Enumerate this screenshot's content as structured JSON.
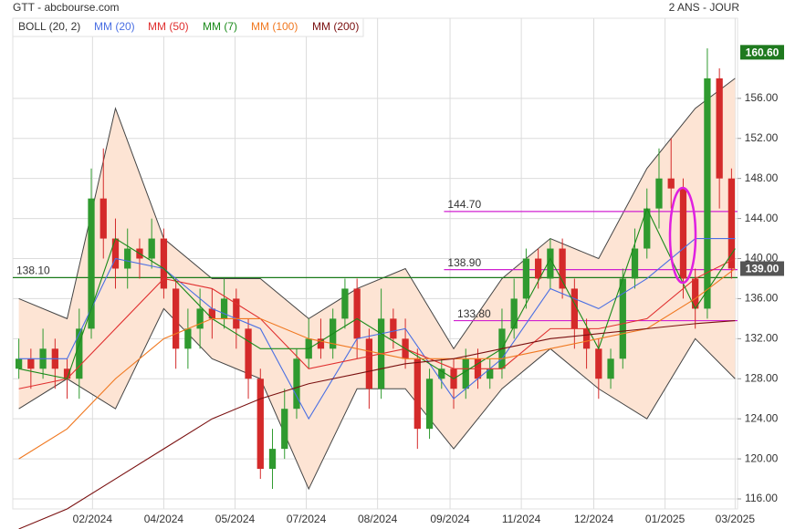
{
  "chart_data": {
    "type": "candlestick",
    "title": "GTT - abcbourse.com",
    "period": "2 ANS - JOUR",
    "xlim": [
      0,
      60
    ],
    "xticks": [
      {
        "value": 6.6,
        "label": "02/2024"
      },
      {
        "value": 12.5,
        "label": "04/2024"
      },
      {
        "value": 18.4,
        "label": "05/2024"
      },
      {
        "value": 24.3,
        "label": "07/2024"
      },
      {
        "value": 30.2,
        "label": "08/2024"
      },
      {
        "value": 36.2,
        "label": "09/2024"
      },
      {
        "value": 42.1,
        "label": "11/2024"
      },
      {
        "value": 48.1,
        "label": "12/2024"
      },
      {
        "value": 54.0,
        "label": "01/2025"
      },
      {
        "value": 59.8,
        "label": "03/2025"
      }
    ],
    "ylim": [
      115,
      164
    ],
    "yticks": [
      {
        "value": 116,
        "label": "116.00"
      },
      {
        "value": 120,
        "label": "120.00"
      },
      {
        "value": 124,
        "label": "124.00"
      },
      {
        "value": 128,
        "label": "128.00"
      },
      {
        "value": 132,
        "label": "132.00"
      },
      {
        "value": 136,
        "label": "136.00"
      },
      {
        "value": 140,
        "label": "140.00"
      },
      {
        "value": 144,
        "label": "144.00"
      },
      {
        "value": 148,
        "label": "148.00"
      },
      {
        "value": 152,
        "label": "152.00"
      },
      {
        "value": 156,
        "label": "156.00"
      }
    ],
    "grid": true,
    "up_color": "#2f9a2f",
    "down_color": "#d42a2a",
    "candles": {
      "open": [
        129,
        130,
        129,
        131,
        129,
        128,
        133,
        146,
        142,
        139,
        141,
        140,
        142,
        137,
        131,
        133,
        135,
        134,
        136,
        133,
        128,
        119,
        121,
        125,
        130,
        132,
        131,
        134,
        137,
        132,
        127,
        134,
        132,
        130,
        123,
        128,
        129,
        127,
        130,
        128,
        129,
        133,
        136,
        140,
        138,
        141,
        137,
        133,
        131,
        128,
        130,
        138,
        141,
        145,
        148,
        147,
        138,
        135,
        158,
        148
      ],
      "high": [
        132,
        131,
        133,
        132,
        130,
        135,
        149,
        151,
        144,
        143,
        142,
        144,
        143,
        138,
        135,
        137,
        137,
        138,
        137,
        134,
        129,
        123,
        127,
        131,
        134,
        134,
        135,
        138,
        138,
        133,
        137,
        135,
        134,
        131,
        129,
        130,
        130,
        131,
        131,
        130,
        135,
        138,
        141,
        141,
        142,
        142,
        138,
        134,
        132,
        131,
        139,
        143,
        147,
        151,
        152,
        148,
        139,
        161,
        159,
        149
      ],
      "low": [
        128,
        127,
        128,
        127,
        126,
        126,
        132,
        140,
        137,
        137,
        138,
        139,
        136,
        129,
        129,
        131,
        132,
        133,
        131,
        126,
        118,
        117,
        120,
        124,
        129,
        130,
        130,
        133,
        130,
        125,
        126,
        131,
        129,
        121,
        122,
        127,
        125,
        126,
        127,
        127,
        128,
        132,
        135,
        137,
        137,
        136,
        131,
        129,
        126,
        127,
        129,
        137,
        140,
        143,
        145,
        136,
        133,
        134,
        145,
        138
      ],
      "close": [
        130,
        129,
        131,
        129,
        128,
        133,
        146,
        142,
        139,
        141,
        140,
        142,
        137,
        131,
        133,
        135,
        134,
        136,
        133,
        128,
        119,
        121,
        125,
        130,
        132,
        131,
        134,
        137,
        132,
        127,
        134,
        132,
        130,
        123,
        128,
        129,
        127,
        130,
        128,
        129,
        133,
        136,
        140,
        138,
        141,
        137,
        133,
        131,
        128,
        130,
        138,
        141,
        145,
        148,
        147,
        138,
        135,
        158,
        148,
        139
      ]
    },
    "bollinger": {
      "name": "BOLL (20, 2)",
      "color": "#444444",
      "fill": "#fde4d4",
      "upper": [
        136,
        134,
        155,
        142,
        138,
        138,
        134,
        137,
        139,
        131,
        138,
        142,
        140,
        149,
        155,
        158
      ],
      "lower": [
        125,
        128,
        125,
        135,
        130,
        128,
        117,
        127,
        127,
        121,
        127,
        131,
        127,
        124,
        132,
        128
      ]
    },
    "lines": {
      "x": [
        0.5,
        4.5,
        8.5,
        12.5,
        16.5,
        20.5,
        24.5,
        28.5,
        32.5,
        36.5,
        40.5,
        44.5,
        48.5,
        52.5,
        56.5,
        59.8
      ],
      "series": [
        {
          "name": "MM (20)",
          "color": "#4a6fe3",
          "values": [
            130,
            130,
            140,
            139,
            135,
            133,
            124,
            132,
            133,
            126,
            130,
            137,
            135,
            138,
            142,
            142
          ]
        },
        {
          "name": "MM (50)",
          "color": "#e03030",
          "values": [
            127,
            128,
            133,
            138,
            137,
            134,
            129,
            130,
            131,
            129,
            129,
            133,
            133,
            134,
            138,
            140
          ]
        },
        {
          "name": "MM (7)",
          "color": "#1a8a1a",
          "values": [
            129,
            128,
            142,
            139,
            134,
            131,
            131,
            134,
            131,
            128,
            131,
            140,
            131,
            145,
            135,
            141
          ]
        },
        {
          "name": "MM (100)",
          "color": "#f07820",
          "values": [
            120,
            123,
            128,
            132,
            134,
            134,
            132,
            131,
            130,
            130,
            130,
            131,
            132,
            133,
            136,
            139
          ]
        },
        {
          "name": "MM (200)",
          "color": "#7a1010",
          "values": [
            113,
            115,
            118,
            121,
            124,
            126,
            127.5,
            128.5,
            129.5,
            130,
            131,
            132,
            132.5,
            133,
            133.5,
            133.8
          ]
        }
      ]
    },
    "levels": [
      {
        "value": 138.1,
        "label": "138.10",
        "color": "#1a7a1a",
        "start": 0
      },
      {
        "value": 144.7,
        "label": "144.70",
        "color": "#d020d0",
        "start": 35.7
      },
      {
        "value": 138.9,
        "label": "138.90",
        "color": "#d020d0",
        "start": 35.7
      },
      {
        "value": 133.8,
        "label": "133.80",
        "color": "#d020d0",
        "start": 36.5
      }
    ],
    "price_labels": [
      {
        "value": 160.6,
        "label": "160.60",
        "color": "#1f7a1f"
      },
      {
        "value": 139,
        "label": "139.00",
        "color": "#555555"
      }
    ]
  }
}
